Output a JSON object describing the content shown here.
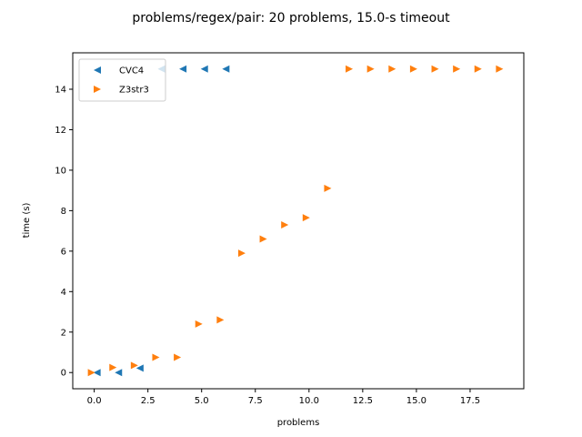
{
  "chart_data": {
    "type": "scatter",
    "title": "problems/regex/pair: 20 problems, 15.0-s timeout",
    "xlabel": "problems",
    "ylabel": "time (s)",
    "xlim": [
      -1.0,
      20.0
    ],
    "ylim": [
      -0.8,
      15.8
    ],
    "xticks": [
      0.0,
      2.5,
      5.0,
      7.5,
      10.0,
      12.5,
      15.0,
      17.5
    ],
    "xtick_labels": [
      "0.0",
      "2.5",
      "5.0",
      "7.5",
      "10.0",
      "12.5",
      "15.0",
      "17.5"
    ],
    "yticks": [
      0,
      2,
      4,
      6,
      8,
      10,
      12,
      14
    ],
    "ytick_labels": [
      "0",
      "2",
      "4",
      "6",
      "8",
      "10",
      "12",
      "14"
    ],
    "grid": false,
    "legend_position": "top-left",
    "series": [
      {
        "name": "CVC4",
        "color": "#1f77b4",
        "marker": "triangle-left",
        "x": [
          0,
          1,
          2,
          3,
          4,
          5,
          6
        ],
        "y": [
          0.0,
          0.0,
          0.22,
          15.0,
          15.0,
          15.0,
          15.0
        ]
      },
      {
        "name": "Z3str3",
        "color": "#ff7f0e",
        "marker": "triangle-right",
        "x": [
          0,
          1,
          2,
          3,
          4,
          5,
          6,
          7,
          8,
          9,
          10,
          11,
          12,
          13,
          14,
          15,
          16,
          17,
          18,
          19
        ],
        "y": [
          0.0,
          0.25,
          0.35,
          0.75,
          0.75,
          2.4,
          2.6,
          5.9,
          6.6,
          7.3,
          7.65,
          9.1,
          15.0,
          15.0,
          15.0,
          15.0,
          15.0,
          15.0,
          15.0,
          15.0
        ]
      }
    ]
  }
}
